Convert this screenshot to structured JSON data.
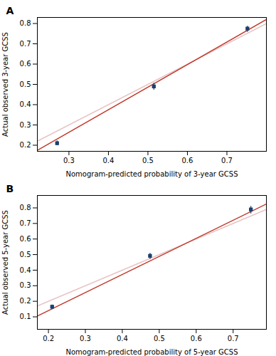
{
  "chart_data": [
    {
      "type": "scatter",
      "title": "A",
      "xlabel": "Nomogram-predicted probability of 3-year GCSS",
      "ylabel": "Actual observed 3-year GCSS",
      "xlim": [
        0.22,
        0.8
      ],
      "ylim": [
        0.17,
        0.83
      ],
      "xticks": [
        0.3,
        0.4,
        0.5,
        0.6,
        0.7
      ],
      "yticks": [
        0.2,
        0.3,
        0.4,
        0.5,
        0.6,
        0.7,
        0.8
      ],
      "grid": false,
      "series": [
        {
          "type": "line",
          "color": "#e8c4c4",
          "x": [
            0.22,
            0.8
          ],
          "values": [
            0.22,
            0.8
          ]
        },
        {
          "type": "line",
          "color": "#c0392b",
          "x": [
            0.22,
            0.8
          ],
          "values": [
            0.175,
            0.82
          ]
        },
        {
          "type": "scatter",
          "marker": "square",
          "color": "#1a3f6f",
          "x": [
            0.27,
            0.515,
            0.752
          ],
          "values": [
            0.21,
            0.49,
            0.775
          ],
          "yerr_low": [
            0.012,
            0.018,
            0.018
          ],
          "yerr_high": [
            0.012,
            0.016,
            0.012
          ]
        }
      ]
    },
    {
      "type": "scatter",
      "title": "B",
      "xlabel": "Nomogram-predicted probability of 5-year GCSS",
      "ylabel": "Actual observed 5-year GCSS",
      "xlim": [
        0.17,
        0.79
      ],
      "ylim": [
        0.02,
        0.88
      ],
      "xticks": [
        0.2,
        0.3,
        0.4,
        0.5,
        0.6,
        0.7
      ],
      "yticks": [
        0.1,
        0.2,
        0.3,
        0.4,
        0.5,
        0.6,
        0.7,
        0.8
      ],
      "grid": false,
      "series": [
        {
          "type": "line",
          "color": "#e8c4c4",
          "x": [
            0.17,
            0.79
          ],
          "values": [
            0.17,
            0.79
          ]
        },
        {
          "type": "line",
          "color": "#c0392b",
          "x": [
            0.17,
            0.79
          ],
          "values": [
            0.105,
            0.825
          ]
        },
        {
          "type": "scatter",
          "marker": "square",
          "color": "#1a3f6f",
          "x": [
            0.21,
            0.475,
            0.748
          ],
          "values": [
            0.165,
            0.492,
            0.79
          ],
          "yerr_low": [
            0.018,
            0.022,
            0.028
          ],
          "yerr_high": [
            0.012,
            0.016,
            0.02
          ]
        }
      ]
    }
  ]
}
